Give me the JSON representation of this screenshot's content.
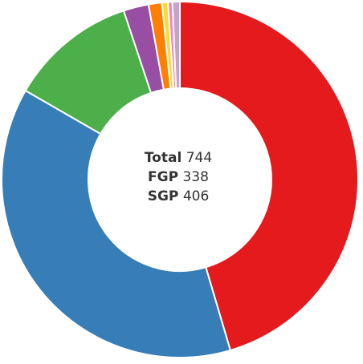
{
  "chart_data": {
    "type": "pie",
    "variant": "donut",
    "categories": [
      "Red",
      "Blue",
      "Green",
      "Purple",
      "Orange",
      "Yellow",
      "Pink",
      "Light purple"
    ],
    "values": [
      338,
      282,
      86,
      17,
      9,
      4,
      3,
      5
    ],
    "colors": [
      "#e41a1c",
      "#377eb8",
      "#4daf4a",
      "#984ea3",
      "#ff7f00",
      "#ffd92f",
      "#f781bf",
      "#c8a2c8"
    ],
    "start": "top, clockwise"
  },
  "center": {
    "lines": [
      {
        "label": "Total",
        "value": "744"
      },
      {
        "label": "FGP",
        "value": "338"
      },
      {
        "label": "SGP",
        "value": "406"
      }
    ]
  }
}
